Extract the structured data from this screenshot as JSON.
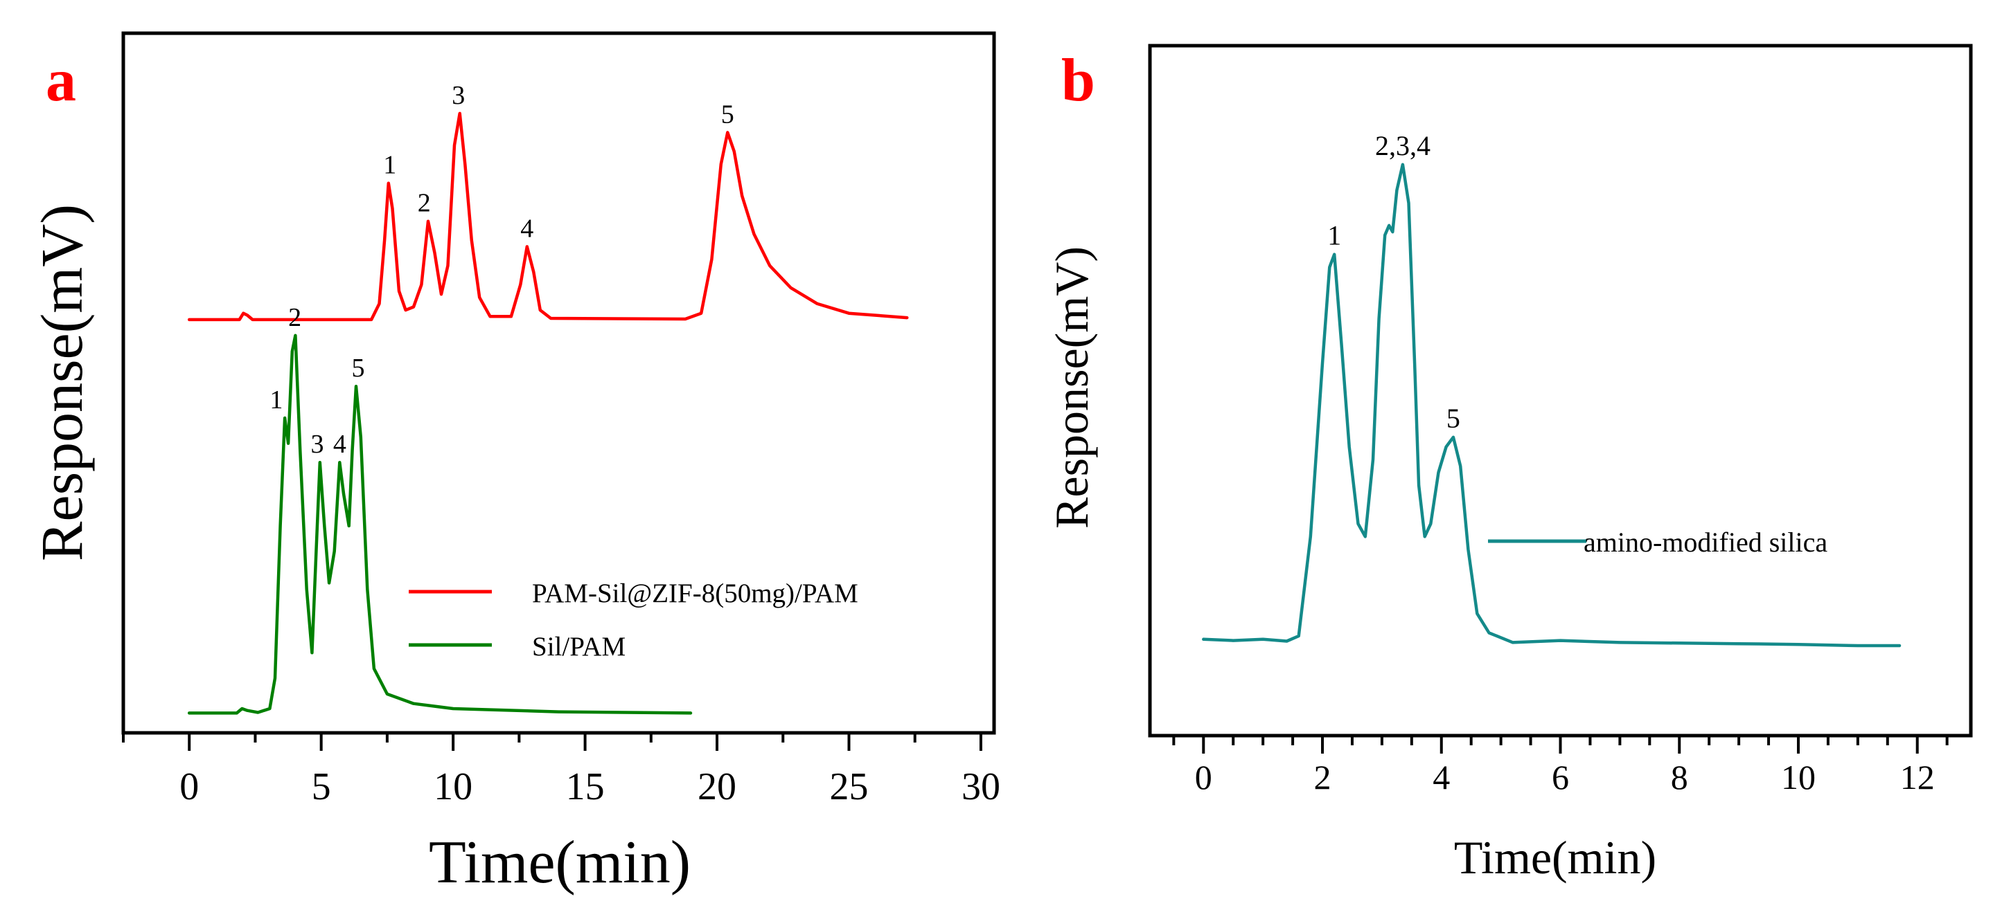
{
  "chart_data": [
    {
      "type": "line",
      "panel_label": "a",
      "xlabel": "Time(min)",
      "ylabel": "Response(mV)",
      "xlim": [
        -2.5,
        30.5
      ],
      "xticks": [
        0,
        5,
        10,
        15,
        20,
        25,
        30
      ],
      "xtick_labels": [
        "0",
        "5",
        "10",
        "15",
        "20",
        "25",
        "30"
      ],
      "ylim": [
        0,
        100
      ],
      "yticks_shown": false,
      "legend": "center-right",
      "series": [
        {
          "name": "PAM-Sil@ZIF-8(50mg)/PAM",
          "color": "#ff0000",
          "x": [
            0,
            1.9,
            2.05,
            2.2,
            2.4,
            6.9,
            7.2,
            7.4,
            7.55,
            7.7,
            7.95,
            8.2,
            8.5,
            8.8,
            9.05,
            9.3,
            9.55,
            9.8,
            10.05,
            10.25,
            10.45,
            10.7,
            11.0,
            11.4,
            12.2,
            12.55,
            12.8,
            13.05,
            13.3,
            13.7,
            18.8,
            19.4,
            19.8,
            20.15,
            20.4,
            20.65,
            20.95,
            21.4,
            22.0,
            22.8,
            23.8,
            25.0,
            27.2
          ],
          "y": [
            62.5,
            62.5,
            63.5,
            63.2,
            62.5,
            62.5,
            65.0,
            75.0,
            84.0,
            80.0,
            67.0,
            64.0,
            64.5,
            68.0,
            78.0,
            73.0,
            66.5,
            71.0,
            90.0,
            95.0,
            87.0,
            75.0,
            66.0,
            63.0,
            63.0,
            68.0,
            74.0,
            70.0,
            64.0,
            62.7,
            62.6,
            63.5,
            72.0,
            87.0,
            92.0,
            89.0,
            82.0,
            76.0,
            71.0,
            67.5,
            65.0,
            63.5,
            62.8
          ]
        },
        {
          "name": "Sil/PAM",
          "color": "#008000",
          "x": [
            0,
            1.8,
            2.0,
            2.2,
            2.6,
            3.05,
            3.25,
            3.45,
            3.62,
            3.75,
            3.9,
            4.02,
            4.2,
            4.45,
            4.65,
            4.82,
            4.95,
            5.12,
            5.3,
            5.5,
            5.7,
            5.85,
            6.05,
            6.18,
            6.32,
            6.5,
            6.75,
            7.0,
            7.5,
            8.5,
            10.0,
            14.0,
            19.0
          ],
          "y": [
            0.5,
            0.5,
            1.2,
            0.9,
            0.6,
            1.2,
            6.0,
            30.0,
            47.0,
            43.0,
            57.5,
            60.0,
            42.0,
            20.0,
            10.0,
            27.0,
            40.0,
            30.0,
            21.0,
            26.0,
            40.0,
            35.0,
            30.0,
            42.0,
            52.0,
            44.0,
            20.0,
            7.5,
            3.5,
            2.0,
            1.2,
            0.7,
            0.5
          ]
        }
      ],
      "annotations": [
        {
          "text": "1",
          "x": 7.6,
          "y": 84.0
        },
        {
          "text": "2",
          "x": 8.9,
          "y": 78.0
        },
        {
          "text": "3",
          "x": 10.2,
          "y": 95.0
        },
        {
          "text": "4",
          "x": 12.8,
          "y": 74.0
        },
        {
          "text": "5",
          "x": 20.4,
          "y": 92.0
        },
        {
          "text": "1",
          "x": 3.3,
          "y": 47.0
        },
        {
          "text": "2",
          "x": 4.0,
          "y": 60.0
        },
        {
          "text": "3",
          "x": 4.85,
          "y": 40.0
        },
        {
          "text": "4",
          "x": 5.7,
          "y": 40.0
        },
        {
          "text": "5",
          "x": 6.4,
          "y": 52.0
        }
      ]
    },
    {
      "type": "line",
      "panel_label": "b",
      "xlabel": "Time(min)",
      "ylabel": "Response(mV)",
      "xlim": [
        -0.9,
        12.9
      ],
      "xticks": [
        0,
        2,
        4,
        6,
        8,
        10,
        12
      ],
      "xtick_labels": [
        "0",
        "2",
        "4",
        "6",
        "8",
        "10",
        "12"
      ],
      "ylim": [
        0,
        100
      ],
      "yticks_shown": false,
      "legend": "center-right",
      "series": [
        {
          "name": "amino-modified silica",
          "color": "#148a8a",
          "x": [
            0,
            0.5,
            1.0,
            1.4,
            1.6,
            1.8,
            2.0,
            2.12,
            2.2,
            2.32,
            2.45,
            2.6,
            2.72,
            2.85,
            2.95,
            3.05,
            3.12,
            3.18,
            3.25,
            3.35,
            3.45,
            3.55,
            3.62,
            3.72,
            3.82,
            3.95,
            4.08,
            4.2,
            4.32,
            4.45,
            4.6,
            4.8,
            5.2,
            6.0,
            7.0,
            8.0,
            9.0,
            10.0,
            11.0,
            11.7
          ],
          "y": [
            12.0,
            11.8,
            12.0,
            11.7,
            12.5,
            28.0,
            55.0,
            70.0,
            72.0,
            58.0,
            42.0,
            30.0,
            28.0,
            40.0,
            62.0,
            75.0,
            76.5,
            75.5,
            82.0,
            86.0,
            80.0,
            55.0,
            36.0,
            28.0,
            30.0,
            38.0,
            42.0,
            43.5,
            39.0,
            26.0,
            16.0,
            13.0,
            11.5,
            11.8,
            11.5,
            11.4,
            11.3,
            11.2,
            11.0,
            11.0
          ]
        }
      ],
      "annotations": [
        {
          "text": "1",
          "x": 2.2,
          "y": 72.0
        },
        {
          "text": "2,3,4",
          "x": 3.35,
          "y": 86.0
        },
        {
          "text": "5",
          "x": 4.2,
          "y": 43.5
        }
      ]
    }
  ]
}
